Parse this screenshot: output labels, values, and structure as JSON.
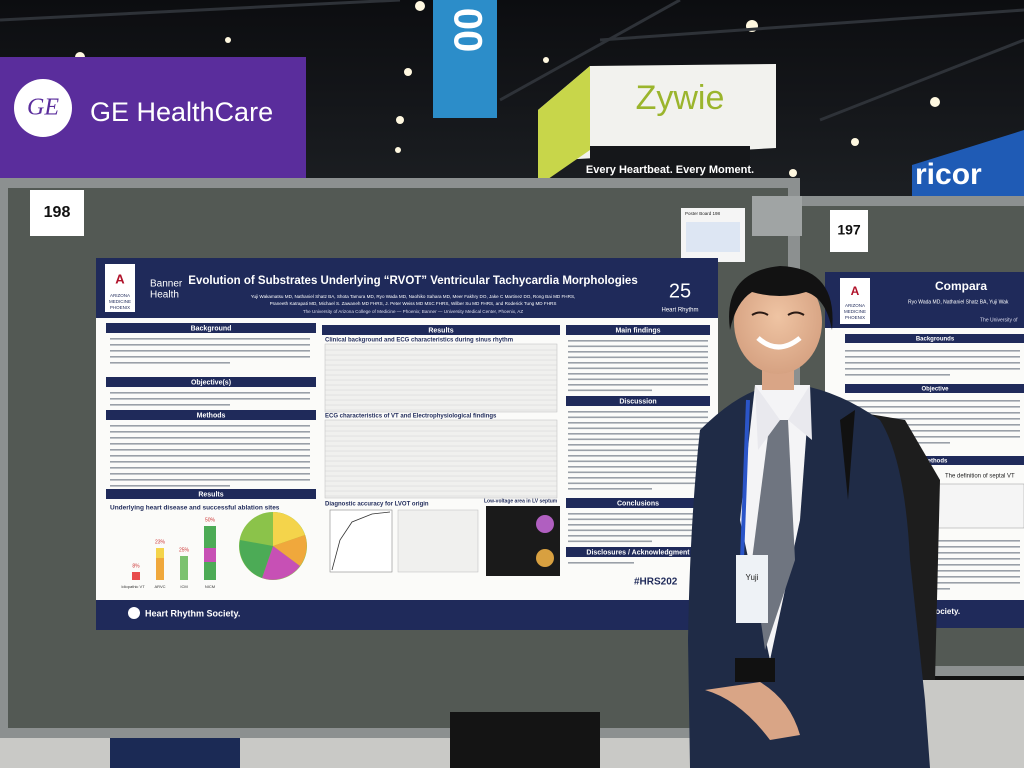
{
  "venue_signs": {
    "ge_logo": "GE",
    "ge_name": "GE HealthCare",
    "banner_digits": "00",
    "zywie_name": "Zywie",
    "zywie_tagline": "Every Heartbeat. Every Moment.",
    "ricor": "ricor"
  },
  "board_numbers": [
    "198",
    "197"
  ],
  "board_notice": "Poster Board 198",
  "poster_left": {
    "logo_arizona": [
      "ARIZONA",
      "MEDICINE",
      "PHOENIX"
    ],
    "logo_banner": [
      "Banner",
      "Health"
    ],
    "title": "Evolution of Substrates Underlying “RVOT” Ventricular Tachycardia Morphologies",
    "authors": [
      "Yuji Wakamatsu MD, Nathaniel Shatz BA, Shota Tamura MD, Ryo Wada MD, Naohiko Sahara MD, Meer Fakhry DO, Jake C Martinez DO, Rong Bai MD FHRS,",
      "Praneeth Katrapati MD, Michael S. Zawaneh MD FHRS, J. Peter Weiss MD MSC FHRS, Wilber Su MD FHRS, and Roderick Tung MD FHRS"
    ],
    "affiliation": "The University of Arizona College of Medicine — Phoenix; Banner — University Medical Center, Phoenix, AZ",
    "hr_logo": [
      "25",
      "Heart Rhythm"
    ],
    "sections": [
      "Background",
      "Objective(s)",
      "Methods",
      "Results",
      "Results",
      "Main findings",
      "Discussion",
      "Conclusions",
      "Disclosures / Acknowledgment"
    ],
    "figure_titles": [
      "Underlying heart disease and successful ablation sites",
      "Clinical background and ECG characteristics during sinus rhythm",
      "ECG characteristics of VT and Electrophysiological findings",
      "Diagnostic accuracy for LVOT origin",
      "Low-voltage area in LV septum"
    ],
    "bar_labels": [
      "8%",
      "23%",
      "25%",
      "50%"
    ],
    "bar_categories": [
      "Idiopathic VT",
      "ARVC",
      "ICM",
      "NICM"
    ],
    "hashtag": "#HRS202",
    "footer": "Heart Rhythm Society."
  },
  "poster_right": {
    "logo_arizona": [
      "ARIZONA",
      "MEDICINE",
      "PHOENIX"
    ],
    "title": "Compara",
    "authors": "Ryo Wada MD, Nathaniel Shatz BA, Yuji Wak",
    "affiliation": "The University of",
    "sections": [
      "Backgrounds",
      "Objective",
      "Methods"
    ],
    "figure_caption": "The definition of septal VT",
    "footer": "Society."
  },
  "presenter_badge": "Yuji"
}
